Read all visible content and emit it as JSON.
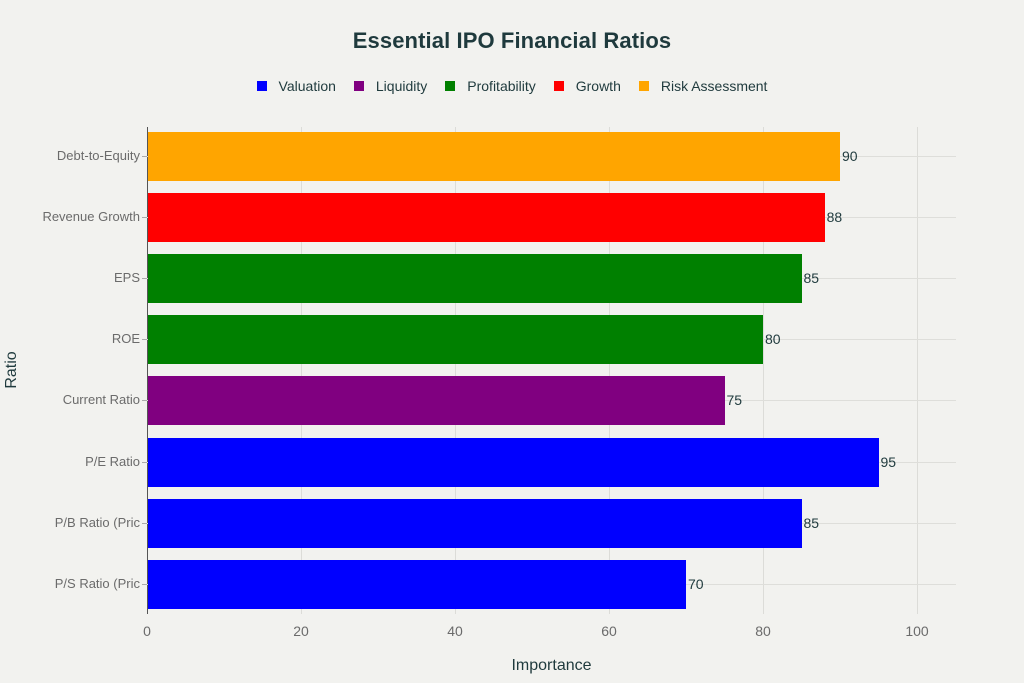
{
  "chart_data": {
    "type": "bar",
    "orientation": "horizontal",
    "title": "Essential IPO Financial Ratios",
    "xlabel": "Importance",
    "ylabel": "Ratio",
    "xlim": [
      0,
      105
    ],
    "xticks": [
      0,
      20,
      40,
      60,
      80,
      100
    ],
    "grid": true,
    "legend_position": "top",
    "legend": [
      {
        "name": "Valuation",
        "color": "#0000ff"
      },
      {
        "name": "Liquidity",
        "color": "#800080"
      },
      {
        "name": "Profitability",
        "color": "#008000"
      },
      {
        "name": "Growth",
        "color": "#ff0000"
      },
      {
        "name": "Risk Assessment",
        "color": "#ffa500"
      }
    ],
    "categories": [
      "Debt-to-Equity",
      "Revenue Growth",
      "EPS",
      "ROE",
      "Current Ratio",
      "P/E Ratio",
      "P/B Ratio (Pric",
      "P/S Ratio (Pric"
    ],
    "values": [
      90,
      88,
      85,
      80,
      75,
      95,
      85,
      70
    ],
    "bar_groups": [
      "Risk Assessment",
      "Growth",
      "Profitability",
      "Profitability",
      "Liquidity",
      "Valuation",
      "Valuation",
      "Valuation"
    ],
    "series": [
      {
        "name": "Valuation",
        "categories": [
          "P/E Ratio",
          "P/B Ratio (Pric",
          "P/S Ratio (Pric"
        ],
        "values": [
          95,
          85,
          70
        ]
      },
      {
        "name": "Liquidity",
        "categories": [
          "Current Ratio"
        ],
        "values": [
          75
        ]
      },
      {
        "name": "Profitability",
        "categories": [
          "EPS",
          "ROE"
        ],
        "values": [
          85,
          80
        ]
      },
      {
        "name": "Growth",
        "categories": [
          "Revenue Growth"
        ],
        "values": [
          88
        ]
      },
      {
        "name": "Risk Assessment",
        "categories": [
          "Debt-to-Equity"
        ],
        "values": [
          90
        ]
      }
    ]
  },
  "bars": [
    {
      "label": "Debt-to-Equity",
      "value": 90,
      "value_label": "90",
      "color": "#ffa500"
    },
    {
      "label": "Revenue Growth",
      "value": 88,
      "value_label": "88",
      "color": "#ff0000"
    },
    {
      "label": "EPS",
      "value": 85,
      "value_label": "85",
      "color": "#008000"
    },
    {
      "label": "ROE",
      "value": 80,
      "value_label": "80",
      "color": "#008000"
    },
    {
      "label": "Current Ratio",
      "value": 75,
      "value_label": "75",
      "color": "#800080"
    },
    {
      "label": "P/E Ratio",
      "value": 95,
      "value_label": "95",
      "color": "#0000ff"
    },
    {
      "label": "P/B Ratio (Pric",
      "value": 85,
      "value_label": "85",
      "color": "#0000ff"
    },
    {
      "label": "P/S Ratio (Pric",
      "value": 70,
      "value_label": "70",
      "color": "#0000ff"
    }
  ],
  "xtick_labels": [
    "0",
    "20",
    "40",
    "60",
    "80",
    "100"
  ]
}
